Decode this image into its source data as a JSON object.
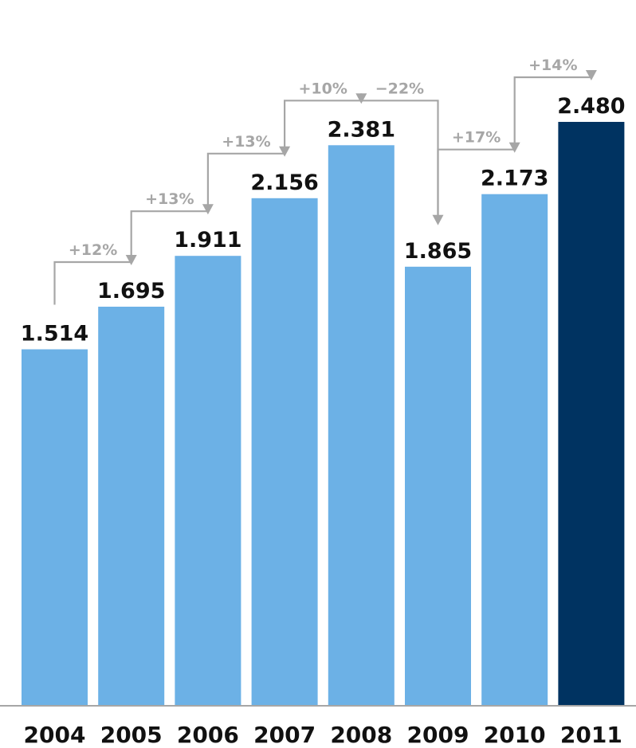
{
  "chart_data": {
    "type": "bar",
    "categories": [
      "2004",
      "2005",
      "2006",
      "2007",
      "2008",
      "2009",
      "2010",
      "2011"
    ],
    "values": [
      1.514,
      1.695,
      1.911,
      2.156,
      2.381,
      1.865,
      2.173,
      2.48
    ],
    "value_labels": [
      "1.514",
      "1.695",
      "1.911",
      "2.156",
      "2.381",
      "1.865",
      "2.173",
      "2.480"
    ],
    "changes": [
      "+12%",
      "+13%",
      "+13%",
      "+10%",
      "−22%",
      "+17%",
      "+14%"
    ],
    "title": "",
    "xlabel": "",
    "ylabel": "",
    "ylim": [
      0,
      2.48
    ],
    "grid": false,
    "colors": {
      "bar": "#6cb1e6",
      "highlight_bar": "#003361",
      "connector": "#a6a6a6",
      "axis": "#a6a6a6"
    },
    "highlight_index": 7
  }
}
